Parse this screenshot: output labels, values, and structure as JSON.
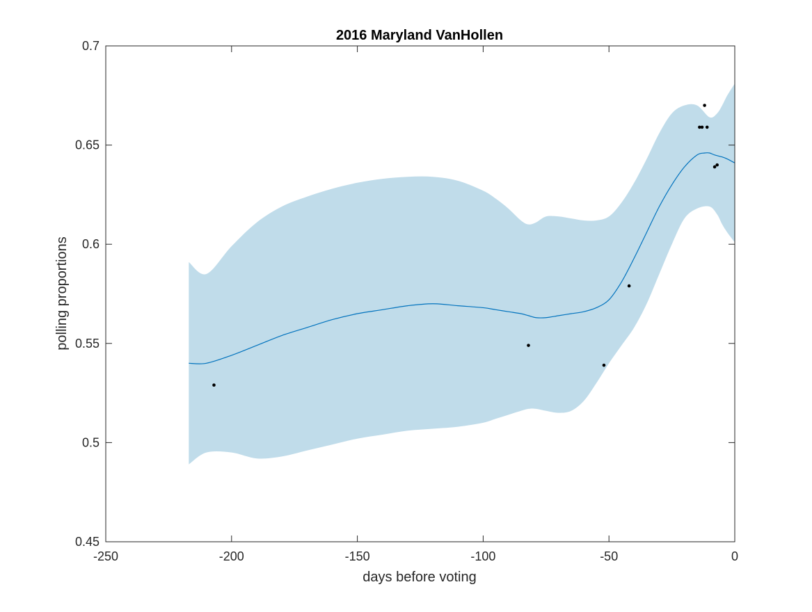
{
  "chart_data": {
    "type": "line",
    "title": "2016 Maryland VanHollen",
    "xlabel": "days before voting",
    "ylabel": "polling proportions",
    "xlim": [
      -250,
      0
    ],
    "ylim": [
      0.45,
      0.7
    ],
    "xticks": [
      -250,
      -200,
      -150,
      -100,
      -50,
      0
    ],
    "yticks": [
      0.45,
      0.5,
      0.55,
      0.6,
      0.65,
      0.7
    ],
    "xtick_labels": [
      "-250",
      "-200",
      "-150",
      "-100",
      "-50",
      "0"
    ],
    "ytick_labels": [
      "0.45",
      "0.5",
      "0.55",
      "0.6",
      "0.65",
      "0.7"
    ],
    "grid": false,
    "colors": {
      "band": "#c0dcea",
      "line": "#0072bd",
      "points": "#000000",
      "axes": "#262626"
    },
    "series": [
      {
        "type": "band",
        "x": [
          -217,
          -210,
          -200,
          -190,
          -180,
          -170,
          -160,
          -150,
          -140,
          -130,
          -120,
          -110,
          -100,
          -95,
          -90,
          -85,
          -82,
          -79,
          -75,
          -70,
          -65,
          -60,
          -55,
          -50,
          -45,
          -40,
          -35,
          -30,
          -25,
          -20,
          -15,
          -10,
          -7,
          -5,
          -3,
          0
        ],
        "upper": [
          0.591,
          0.585,
          0.599,
          0.611,
          0.619,
          0.624,
          0.628,
          0.631,
          0.633,
          0.634,
          0.634,
          0.632,
          0.627,
          0.623,
          0.618,
          0.612,
          0.61,
          0.611,
          0.614,
          0.614,
          0.613,
          0.612,
          0.612,
          0.614,
          0.621,
          0.631,
          0.643,
          0.656,
          0.666,
          0.67,
          0.67,
          0.664,
          0.666,
          0.67,
          0.675,
          0.681
        ],
        "lower": [
          0.489,
          0.495,
          0.495,
          0.492,
          0.493,
          0.496,
          0.499,
          0.502,
          0.504,
          0.506,
          0.507,
          0.508,
          0.51,
          0.512,
          0.514,
          0.516,
          0.517,
          0.517,
          0.516,
          0.515,
          0.516,
          0.521,
          0.53,
          0.54,
          0.549,
          0.558,
          0.57,
          0.585,
          0.6,
          0.613,
          0.618,
          0.619,
          0.615,
          0.61,
          0.606,
          0.601
        ]
      },
      {
        "type": "line",
        "x": [
          -217,
          -210,
          -200,
          -190,
          -180,
          -170,
          -160,
          -150,
          -140,
          -130,
          -120,
          -110,
          -100,
          -95,
          -90,
          -85,
          -82,
          -79,
          -75,
          -70,
          -65,
          -60,
          -55,
          -50,
          -45,
          -40,
          -35,
          -30,
          -25,
          -20,
          -15,
          -12,
          -10,
          -8,
          -5,
          -3,
          0
        ],
        "y": [
          0.54,
          0.54,
          0.544,
          0.549,
          0.554,
          0.558,
          0.562,
          0.565,
          0.567,
          0.569,
          0.57,
          0.569,
          0.568,
          0.567,
          0.566,
          0.565,
          0.564,
          0.563,
          0.563,
          0.564,
          0.565,
          0.566,
          0.568,
          0.572,
          0.581,
          0.593,
          0.606,
          0.619,
          0.63,
          0.639,
          0.645,
          0.646,
          0.646,
          0.645,
          0.644,
          0.643,
          0.641
        ]
      },
      {
        "type": "scatter",
        "x": [
          -207,
          -82,
          -52,
          -42,
          -14,
          -13,
          -12,
          -11,
          -8,
          -7
        ],
        "y": [
          0.529,
          0.549,
          0.539,
          0.579,
          0.659,
          0.659,
          0.67,
          0.659,
          0.639,
          0.64
        ]
      }
    ]
  }
}
